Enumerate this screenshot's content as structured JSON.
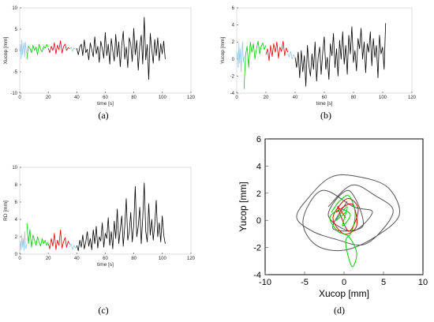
{
  "chart_data": [
    {
      "id": "a",
      "panel_label": "(a)",
      "type": "line",
      "xlabel": "time [s]",
      "ylabel": "Xucop [mm]",
      "xlim": [
        0,
        120
      ],
      "ylim": [
        -10,
        10
      ],
      "xticks": [
        0,
        20,
        40,
        60,
        80,
        100,
        120
      ],
      "yticks": [
        -10,
        -5,
        0,
        5,
        10
      ],
      "series": [
        {
          "color": "#9cc8e6",
          "t_range": [
            0,
            5
          ],
          "values": [
            0,
            1.5,
            -2,
            2.5,
            -1,
            0.5,
            1.8,
            -1.5,
            2,
            0.3,
            -0.8
          ]
        },
        {
          "color": "#00cc00",
          "t_range": [
            5,
            20
          ],
          "values": [
            -2,
            1,
            0.5,
            -0.5,
            1.2,
            0,
            0.8,
            -1,
            1.5,
            0.2,
            -0.3,
            1,
            0.6,
            1.4,
            0.9
          ]
        },
        {
          "color": "#dd0000",
          "t_range": [
            20,
            35
          ],
          "values": [
            0.5,
            -0.5,
            1,
            0,
            1.8,
            -0.8,
            1.3,
            0.2,
            2.3,
            -0.6,
            0.9,
            1.5,
            0,
            0.7,
            0.4
          ]
        },
        {
          "color": "#9cc8e6",
          "t_range": [
            35,
            40
          ],
          "values": [
            0.4,
            0.8,
            -0.2,
            0.6,
            0.3,
            0.5
          ]
        },
        {
          "color": "#000000",
          "t_range": [
            40,
            102
          ],
          "values": [
            0.5,
            -1,
            0.8,
            1.5,
            -1.2,
            2.5,
            -0.5,
            0.3,
            -2.2,
            1.8,
            0.2,
            -1.5,
            3.2,
            -0.8,
            1,
            -2.8,
            2.2,
            0.5,
            -1.8,
            4.2,
            -1.2,
            1.5,
            -3.2,
            2.8,
            0,
            -2.5,
            3.8,
            -1.5,
            2,
            -3.8,
            1.2,
            4.5,
            -2,
            0.8,
            -4,
            3,
            1.5,
            -2.6,
            5.2,
            -1,
            2.4,
            -4.6,
            1,
            3.6,
            -3.2,
            7.8,
            -2.2,
            1.4,
            -6.8,
            4,
            0.4,
            -3,
            2.6,
            -1.2,
            3,
            -2.4,
            1.6,
            -0.8,
            2.2,
            -2
          ]
        }
      ]
    },
    {
      "id": "b",
      "panel_label": "(b)",
      "type": "line",
      "xlabel": "time [s]",
      "ylabel": "Yucop [mm]",
      "xlim": [
        0,
        120
      ],
      "ylim": [
        -4,
        6
      ],
      "xticks": [
        0,
        20,
        40,
        60,
        80,
        100,
        120
      ],
      "yticks": [
        -4,
        -2,
        0,
        2,
        4,
        6
      ],
      "series": [
        {
          "color": "#9cc8e6",
          "t_range": [
            0,
            5
          ],
          "values": [
            0,
            0.8,
            -1,
            1.8,
            -0.5,
            1.2,
            -1.5,
            0.6,
            2,
            -0.4,
            0.3
          ]
        },
        {
          "color": "#00cc00",
          "t_range": [
            5,
            20
          ],
          "values": [
            -3.5,
            0.5,
            1.5,
            -1,
            2,
            0.8,
            1.8,
            0,
            1.2,
            2.1,
            0.6,
            1.5,
            1.9,
            1.1,
            1.6
          ]
        },
        {
          "color": "#dd0000",
          "t_range": [
            20,
            35
          ],
          "values": [
            0.5,
            1.2,
            -0.2,
            1.6,
            0.3,
            1.8,
            0.8,
            2,
            0.1,
            1.4,
            0.9,
            2.1,
            0.4,
            1.3,
            0.8
          ]
        },
        {
          "color": "#9cc8e6",
          "t_range": [
            35,
            40
          ],
          "values": [
            0.6,
            0.2,
            0.9,
            0,
            0.5,
            0.3
          ]
        },
        {
          "color": "#000000",
          "t_range": [
            40,
            102
          ],
          "values": [
            0.2,
            -1,
            0.8,
            -2.2,
            1,
            -1.5,
            0.4,
            -3.2,
            1.6,
            -0.8,
            -2,
            0.6,
            -1.2,
            2,
            -2.6,
            0.2,
            1.4,
            -1.8,
            0.8,
            2.6,
            -1.2,
            0.2,
            -2.4,
            1.8,
            0.4,
            3,
            -1,
            1.2,
            -2,
            2.2,
            0,
            3.2,
            -0.6,
            1.6,
            -1.8,
            2.8,
            0.6,
            3.8,
            -0.4,
            1,
            -1.4,
            2.4,
            1.2,
            3.6,
            0,
            2,
            -1.6,
            1.8,
            0.8,
            3.2,
            -0.8,
            2.4,
            0.2,
            1.6,
            -2.2,
            2.8,
            0.6,
            1.4,
            -1.2,
            4.2
          ]
        }
      ]
    },
    {
      "id": "c",
      "panel_label": "(c)",
      "type": "line",
      "xlabel": "time [s]",
      "ylabel": "RD [mm]",
      "xlim": [
        0,
        120
      ],
      "ylim": [
        0,
        10
      ],
      "xticks": [
        0,
        20,
        40,
        60,
        80,
        100,
        120
      ],
      "yticks": [
        0,
        2,
        4,
        6,
        8,
        10
      ],
      "series": [
        {
          "color": "#9cc8e6",
          "t_range": [
            0,
            5
          ],
          "values": [
            0.2,
            1.5,
            0.5,
            2.2,
            0.8,
            1.8,
            0.4,
            2.6,
            1,
            0.6,
            1.2
          ]
        },
        {
          "color": "#00cc00",
          "t_range": [
            5,
            20
          ],
          "values": [
            3.6,
            1.2,
            2.8,
            0.8,
            2.2,
            1.6,
            1,
            2,
            1.4,
            0.9,
            1.8,
            1.2,
            1.6,
            1,
            1.4
          ]
        },
        {
          "color": "#dd0000",
          "t_range": [
            20,
            35
          ],
          "values": [
            1.2,
            0.6,
            1.8,
            0.9,
            2.4,
            0.5,
            1.6,
            1,
            2.8,
            0.7,
            1.4,
            1.9,
            0.8,
            1.5,
            1.1
          ]
        },
        {
          "color": "#9cc8e6",
          "t_range": [
            35,
            40
          ],
          "values": [
            0.8,
            1.2,
            0.5,
            1,
            0.7,
            0.9
          ]
        },
        {
          "color": "#000000",
          "t_range": [
            40,
            102
          ],
          "values": [
            1,
            0.4,
            1.6,
            0.8,
            2.2,
            0.6,
            1.4,
            2.6,
            0.9,
            1.8,
            0.5,
            2.8,
            1.2,
            3.2,
            0.7,
            2,
            1.5,
            3.6,
            0.8,
            2.4,
            1.8,
            4.2,
            1,
            2.6,
            0.6,
            3.8,
            1.8,
            5.2,
            1.2,
            2.8,
            4.4,
            0.9,
            3.2,
            6.4,
            1.6,
            2.6,
            4.8,
            1.4,
            3.4,
            7.8,
            2,
            3.2,
            5.4,
            1.2,
            4.2,
            8.2,
            2.6,
            1.4,
            5.8,
            2.2,
            4,
            1.6,
            3.4,
            6.2,
            2,
            3.6,
            1.4,
            4.4,
            2.2,
            1.2
          ]
        }
      ]
    },
    {
      "id": "d",
      "panel_label": "(d)",
      "type": "scatter",
      "xlabel": "Xucop [mm]",
      "ylabel": "Yucop [mm]",
      "xlim": [
        -10,
        10
      ],
      "ylim": [
        -4,
        6
      ],
      "xticks": [
        -10,
        -5,
        0,
        5,
        10
      ],
      "yticks": [
        -4,
        -2,
        0,
        2,
        4,
        6
      ],
      "series": [
        {
          "color": "#555555",
          "points": [
            [
              -2,
              1
            ],
            [
              1,
              2.6
            ],
            [
              4,
              1.8
            ],
            [
              6.2,
              0.8
            ],
            [
              5,
              -0.6
            ],
            [
              2.4,
              -1.8
            ],
            [
              -1,
              -1.4
            ],
            [
              -4,
              -0.8
            ],
            [
              -6,
              0.2
            ],
            [
              -4.6,
              1.6
            ],
            [
              -1.6,
              3.2
            ],
            [
              2,
              3.2
            ],
            [
              5.6,
              2.4
            ],
            [
              7,
              0.4
            ],
            [
              4,
              -1.2
            ],
            [
              0,
              -2.2
            ],
            [
              -3.6,
              -1.8
            ],
            [
              -5.2,
              0
            ],
            [
              -2.8,
              2.2
            ],
            [
              1.2,
              1
            ],
            [
              3.6,
              0.6
            ],
            [
              1,
              -0.8
            ],
            [
              -2,
              0.4
            ],
            [
              0.6,
              2.2
            ],
            [
              2.4,
              -0.4
            ],
            [
              -1.4,
              -0.6
            ],
            [
              0.4,
              1.4
            ]
          ]
        },
        {
          "color": "#dd0000",
          "points": [
            [
              -1,
              0.6
            ],
            [
              1,
              1.2
            ],
            [
              1.6,
              -0.4
            ],
            [
              0,
              -1
            ],
            [
              -1.4,
              0.2
            ],
            [
              0.4,
              1.6
            ],
            [
              1.8,
              0.8
            ],
            [
              0.6,
              -0.8
            ],
            [
              -0.8,
              1
            ],
            [
              0.2,
              0.2
            ]
          ]
        },
        {
          "color": "#00cc00",
          "points": [
            [
              -1.6,
              0.6
            ],
            [
              -0.6,
              1.4
            ],
            [
              0.6,
              1.8
            ],
            [
              1.4,
              0.6
            ],
            [
              1,
              -0.8
            ],
            [
              0.2,
              -1.6
            ],
            [
              1,
              -3.4
            ],
            [
              1.6,
              -2.4
            ],
            [
              0.6,
              -1.2
            ],
            [
              -0.8,
              -0.8
            ],
            [
              -1.8,
              0.2
            ],
            [
              -0.4,
              0.8
            ],
            [
              0.8,
              0.4
            ],
            [
              -0.2,
              -0.4
            ],
            [
              0.4,
              1
            ],
            [
              -1,
              0
            ],
            [
              0.2,
              0.6
            ]
          ]
        }
      ]
    }
  ]
}
